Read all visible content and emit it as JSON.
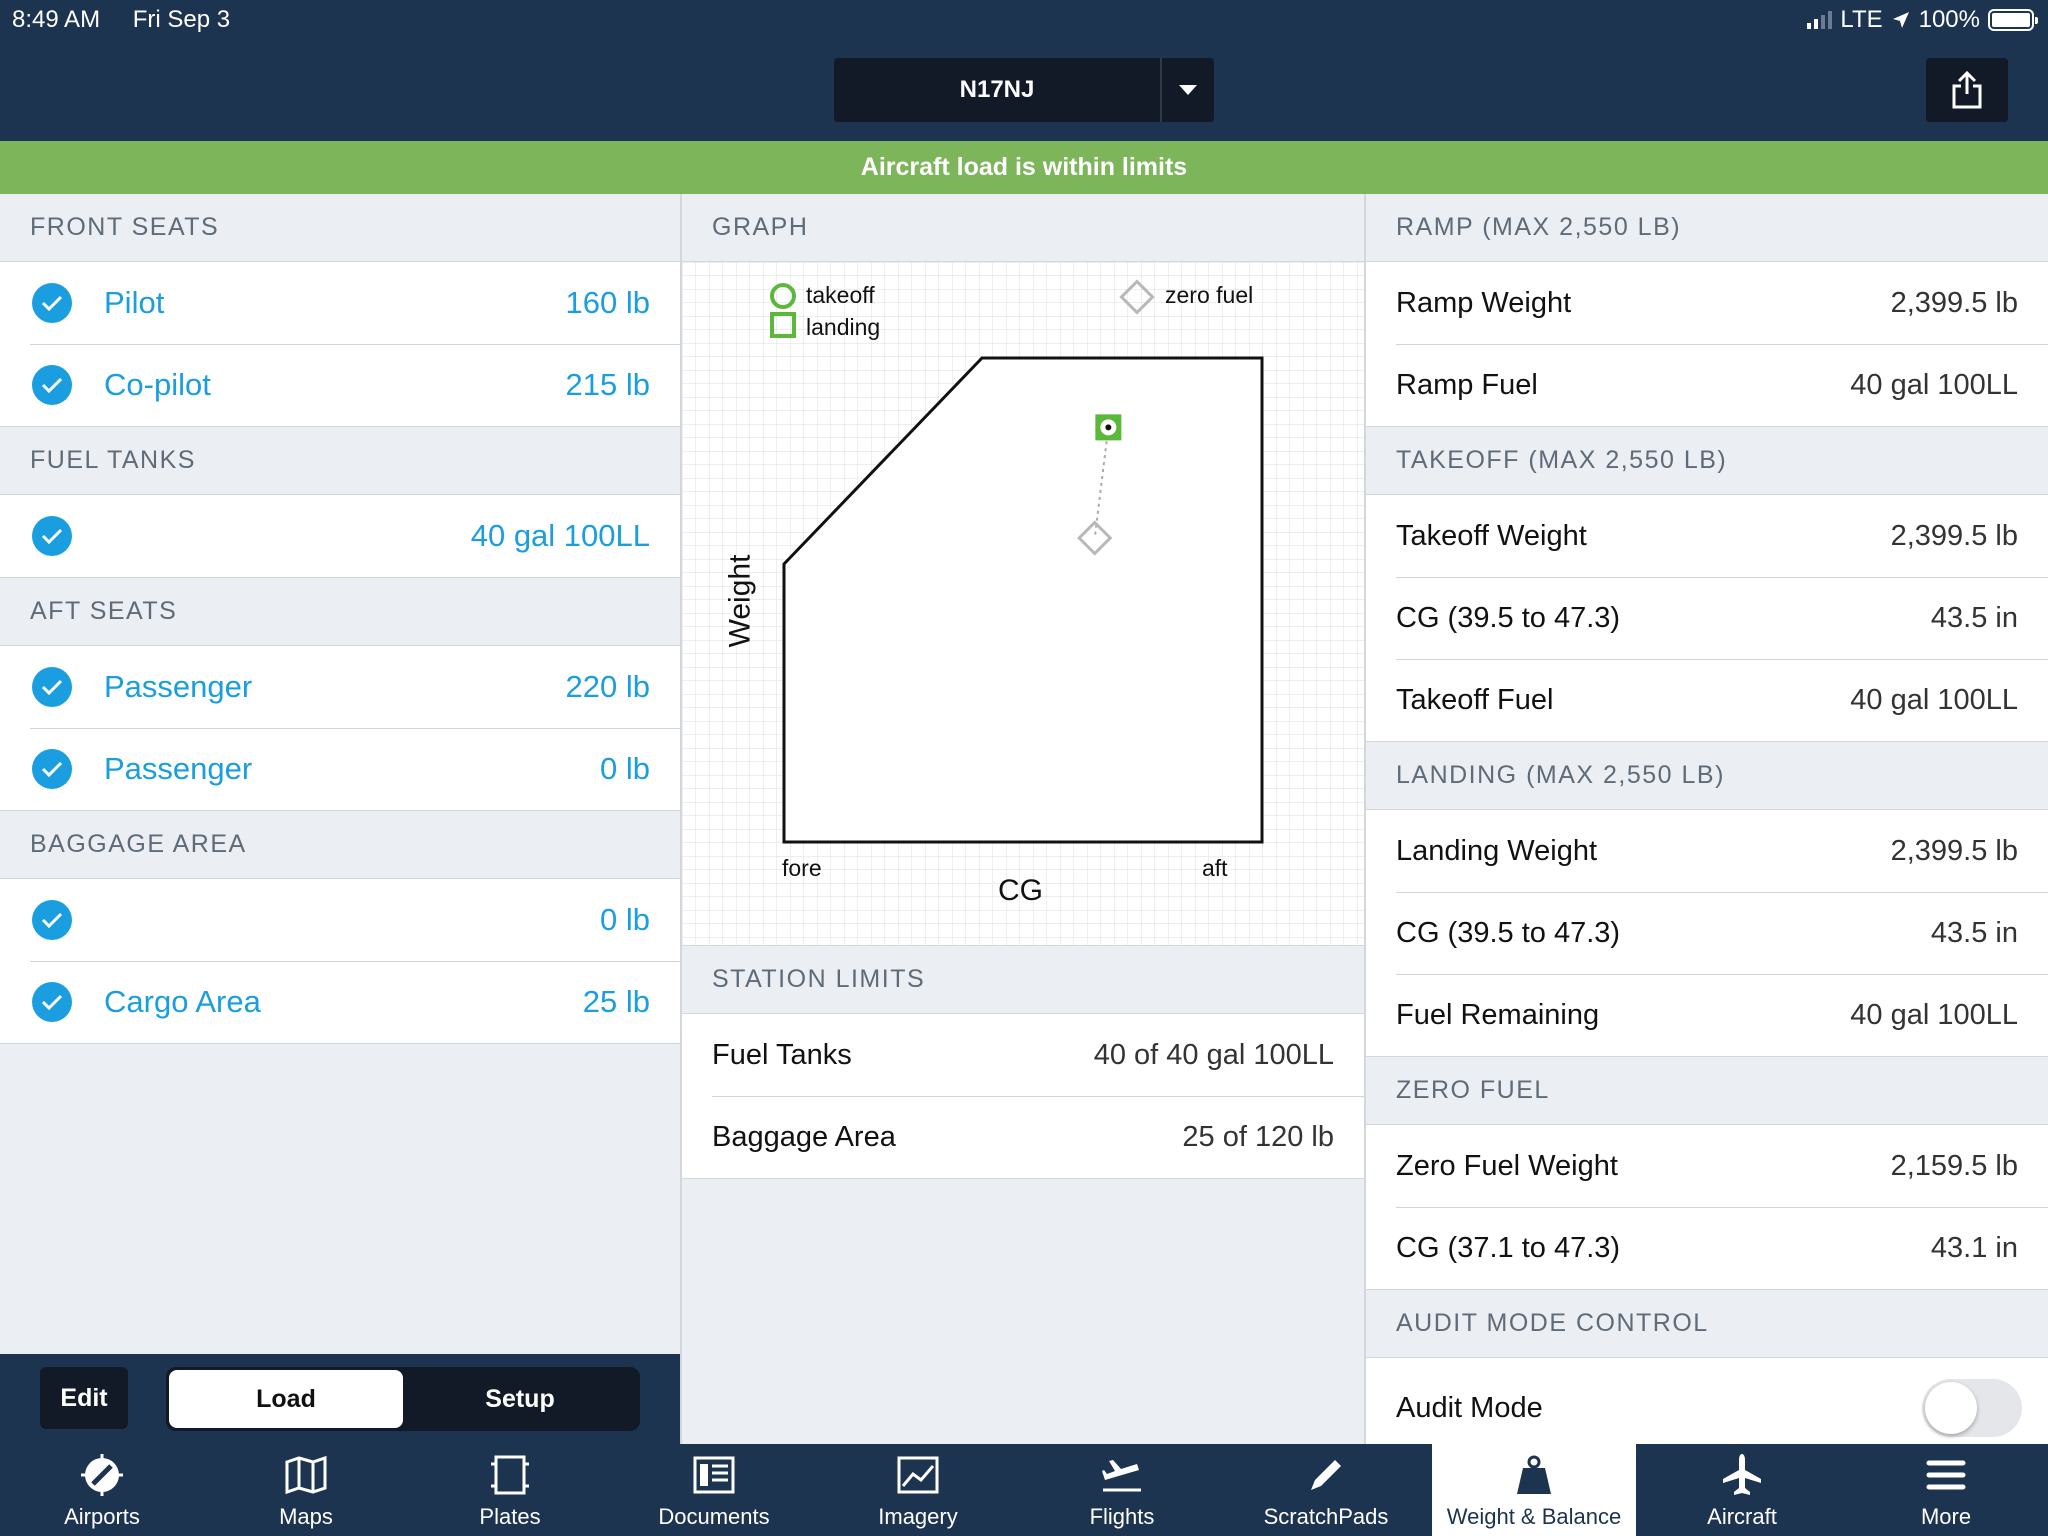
{
  "status_bar": {
    "time": "8:49 AM",
    "date": "Fri Sep 3",
    "network": "LTE",
    "battery": "100%"
  },
  "header": {
    "aircraft": "N17NJ"
  },
  "banner": {
    "message": "Aircraft load is within limits"
  },
  "loads": {
    "front_seats": {
      "title": "FRONT SEATS",
      "items": [
        {
          "label": "Pilot",
          "value": "160 lb"
        },
        {
          "label": "Co-pilot",
          "value": "215 lb"
        }
      ]
    },
    "fuel_tanks": {
      "title": "FUEL TANKS",
      "items": [
        {
          "label": "",
          "value": "40 gal 100LL"
        }
      ]
    },
    "aft_seats": {
      "title": "AFT SEATS",
      "items": [
        {
          "label": "Passenger",
          "value": "220 lb"
        },
        {
          "label": "Passenger",
          "value": "0 lb"
        }
      ]
    },
    "baggage_area": {
      "title": "BAGGAGE AREA",
      "items": [
        {
          "label": "",
          "value": "0 lb"
        },
        {
          "label": "Cargo Area",
          "value": "25 lb"
        }
      ]
    }
  },
  "controls": {
    "edit": "Edit",
    "load": "Load",
    "setup": "Setup"
  },
  "graph": {
    "title": "GRAPH",
    "legend": {
      "takeoff": "takeoff",
      "landing": "landing",
      "zero_fuel": "zero fuel"
    },
    "x_label": "CG",
    "y_label": "Weight",
    "fore": "fore",
    "aft": "aft",
    "colors": {
      "takeoff": "#5cb83a",
      "landing": "#5cb83a",
      "zero_fuel": "#b8b8b8"
    }
  },
  "chart_data": {
    "type": "scatter",
    "xlabel": "CG",
    "ylabel": "Weight",
    "series": [
      {
        "name": "takeoff",
        "x": [
          43.5
        ],
        "y": [
          2399.5
        ]
      },
      {
        "name": "landing",
        "x": [
          43.5
        ],
        "y": [
          2399.5
        ]
      },
      {
        "name": "zero fuel",
        "x": [
          43.1
        ],
        "y": [
          2159.5
        ]
      }
    ]
  },
  "station_limits": {
    "title": "STATION LIMITS",
    "items": [
      {
        "label": "Fuel Tanks",
        "value": "40 of 40 gal 100LL"
      },
      {
        "label": "Baggage Area",
        "value": "25 of 120 lb"
      }
    ]
  },
  "summary": {
    "ramp": {
      "title": "RAMP (MAX 2,550 LB)",
      "items": [
        {
          "label": "Ramp Weight",
          "value": "2,399.5 lb"
        },
        {
          "label": "Ramp Fuel",
          "value": "40 gal 100LL"
        }
      ]
    },
    "takeoff": {
      "title": "TAKEOFF (MAX 2,550 LB)",
      "items": [
        {
          "label": "Takeoff Weight",
          "value": "2,399.5 lb"
        },
        {
          "label": "CG (39.5 to 47.3)",
          "value": "43.5 in"
        },
        {
          "label": "Takeoff Fuel",
          "value": "40 gal 100LL"
        }
      ]
    },
    "landing": {
      "title": "LANDING (MAX 2,550 LB)",
      "items": [
        {
          "label": "Landing Weight",
          "value": "2,399.5 lb"
        },
        {
          "label": "CG (39.5 to 47.3)",
          "value": "43.5 in"
        },
        {
          "label": "Fuel Remaining",
          "value": "40 gal 100LL"
        }
      ]
    },
    "zero_fuel": {
      "title": "ZERO FUEL",
      "items": [
        {
          "label": "Zero Fuel Weight",
          "value": "2,159.5 lb"
        },
        {
          "label": "CG (37.1 to 47.3)",
          "value": "43.1 in"
        }
      ]
    },
    "audit": {
      "title": "AUDIT MODE CONTROL",
      "label": "Audit Mode",
      "enabled": false
    }
  },
  "tabs": [
    {
      "label": "Airports",
      "icon": "airports-icon"
    },
    {
      "label": "Maps",
      "icon": "map-icon"
    },
    {
      "label": "Plates",
      "icon": "plates-icon"
    },
    {
      "label": "Documents",
      "icon": "documents-icon"
    },
    {
      "label": "Imagery",
      "icon": "imagery-icon"
    },
    {
      "label": "Flights",
      "icon": "flights-icon"
    },
    {
      "label": "ScratchPads",
      "icon": "pencil-icon"
    },
    {
      "label": "Weight & Balance",
      "icon": "weight-icon",
      "active": true
    },
    {
      "label": "Aircraft",
      "icon": "airplane-icon"
    },
    {
      "label": "More",
      "icon": "menu-icon"
    }
  ]
}
